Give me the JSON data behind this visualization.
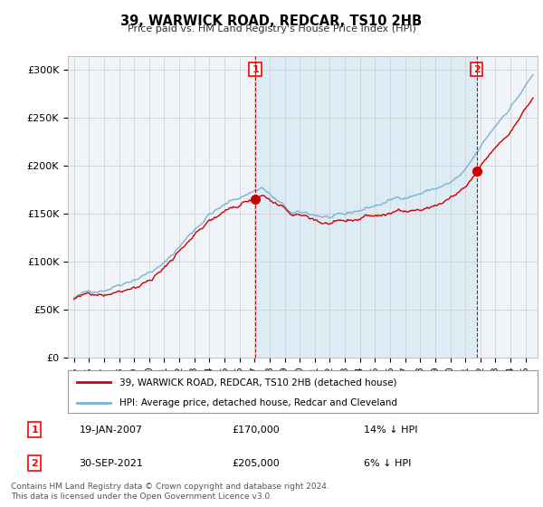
{
  "title": "39, WARWICK ROAD, REDCAR, TS10 2HB",
  "subtitle": "Price paid vs. HM Land Registry's House Price Index (HPI)",
  "ylabel_ticks": [
    "£0",
    "£50K",
    "£100K",
    "£150K",
    "£200K",
    "£250K",
    "£300K"
  ],
  "ytick_values": [
    0,
    50000,
    100000,
    150000,
    200000,
    250000,
    300000
  ],
  "ylim": [
    0,
    315000
  ],
  "hpi_color": "#7ab3d4",
  "hpi_fill_color": "#daeaf5",
  "price_color": "#cc0000",
  "sale1_year": 2007.05,
  "sale2_year": 2021.75,
  "legend_line1": "39, WARWICK ROAD, REDCAR, TS10 2HB (detached house)",
  "legend_line2": "HPI: Average price, detached house, Redcar and Cleveland",
  "sale1_label": "19-JAN-2007",
  "sale1_price": "£170,000",
  "sale1_pct": "14% ↓ HPI",
  "sale2_label": "30-SEP-2021",
  "sale2_price": "£205,000",
  "sale2_pct": "6% ↓ HPI",
  "footnote": "Contains HM Land Registry data © Crown copyright and database right 2024.\nThis data is licensed under the Open Government Licence v3.0.",
  "background_color": "#f0f4f8",
  "grid_color": "#cccccc",
  "xlim_left": 1994.6,
  "xlim_right": 2025.8
}
